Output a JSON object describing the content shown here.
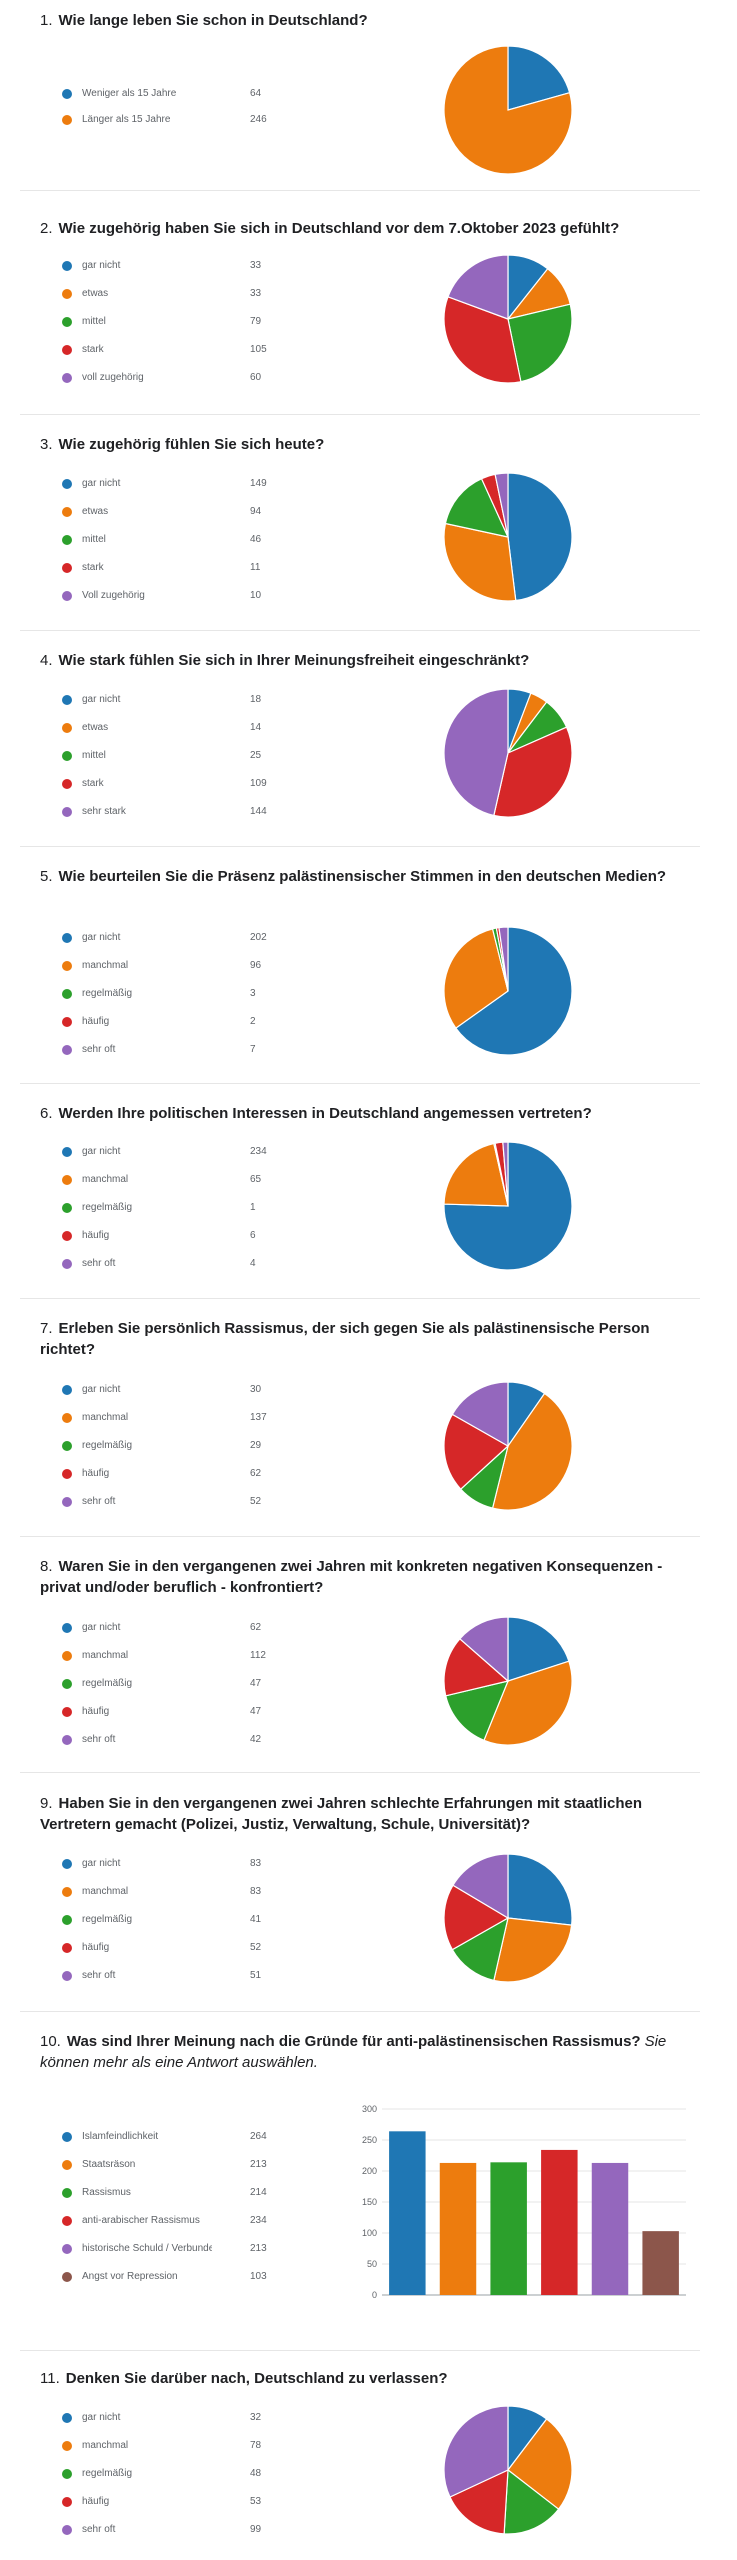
{
  "colors": {
    "blue": "#1f77b4",
    "orange": "#ed7c0e",
    "green": "#2ca02c",
    "red": "#d62728",
    "purple": "#9467bd",
    "brown": "#8c564b",
    "gridline": "#e6e6e6"
  },
  "chart_data": [
    {
      "type": "pie",
      "number": "1.",
      "title": "Wie lange leben Sie schon in Deutschland?",
      "categories": [
        "Weniger als 15 Jahre",
        "Länger als 15 Jahre"
      ],
      "values": [
        64,
        246
      ],
      "colors": [
        "#1f77b4",
        "#ed7c0e"
      ]
    },
    {
      "type": "pie",
      "number": "2.",
      "title": "Wie zugehörig haben Sie sich in Deutschland vor dem 7.Oktober 2023 gefühlt?",
      "categories": [
        "gar nicht",
        "etwas",
        "mittel",
        "stark",
        "voll zugehörig"
      ],
      "values": [
        33,
        33,
        79,
        105,
        60
      ],
      "colors": [
        "#1f77b4",
        "#ed7c0e",
        "#2ca02c",
        "#d62728",
        "#9467bd"
      ]
    },
    {
      "type": "pie",
      "number": "3.",
      "title": "Wie zugehörig fühlen Sie sich heute?",
      "categories": [
        "gar nicht",
        "etwas",
        "mittel",
        "stark",
        "Voll zugehörig"
      ],
      "values": [
        149,
        94,
        46,
        11,
        10
      ],
      "colors": [
        "#1f77b4",
        "#ed7c0e",
        "#2ca02c",
        "#d62728",
        "#9467bd"
      ]
    },
    {
      "type": "pie",
      "number": "4.",
      "title": "Wie stark fühlen Sie sich in Ihrer Meinungsfreiheit eingeschränkt?",
      "categories": [
        "gar nicht",
        "etwas",
        "mittel",
        "stark",
        "sehr stark"
      ],
      "values": [
        18,
        14,
        25,
        109,
        144
      ],
      "colors": [
        "#1f77b4",
        "#ed7c0e",
        "#2ca02c",
        "#d62728",
        "#9467bd"
      ]
    },
    {
      "type": "pie",
      "number": "5.",
      "title": "Wie beurteilen Sie die Präsenz palästinensischer Stimmen in den deutschen Medien?",
      "categories": [
        "gar nicht",
        "manchmal",
        "regelmäßig",
        "häufig",
        "sehr oft"
      ],
      "values": [
        202,
        96,
        3,
        2,
        7
      ],
      "colors": [
        "#1f77b4",
        "#ed7c0e",
        "#2ca02c",
        "#d62728",
        "#9467bd"
      ]
    },
    {
      "type": "pie",
      "number": "6.",
      "title": "Werden Ihre politischen Interessen in Deutschland angemessen vertreten?",
      "categories": [
        "gar nicht",
        "manchmal",
        "regelmäßig",
        "häufig",
        "sehr oft"
      ],
      "values": [
        234,
        65,
        1,
        6,
        4
      ],
      "colors": [
        "#1f77b4",
        "#ed7c0e",
        "#2ca02c",
        "#d62728",
        "#9467bd"
      ]
    },
    {
      "type": "pie",
      "number": "7.",
      "title": "Erleben Sie persönlich Rassismus, der sich gegen Sie als palästinensische Person richtet?",
      "categories": [
        "gar nicht",
        "manchmal",
        "regelmäßig",
        "häufig",
        "sehr oft"
      ],
      "values": [
        30,
        137,
        29,
        62,
        52
      ],
      "colors": [
        "#1f77b4",
        "#ed7c0e",
        "#2ca02c",
        "#d62728",
        "#9467bd"
      ]
    },
    {
      "type": "pie",
      "number": "8.",
      "title": "Waren Sie in den vergangenen zwei Jahren mit konkreten negativen Konsequenzen - privat und/oder beruflich - konfrontiert?",
      "categories": [
        "gar nicht",
        "manchmal",
        "regelmäßig",
        "häufig",
        "sehr oft"
      ],
      "values": [
        62,
        112,
        47,
        47,
        42
      ],
      "colors": [
        "#1f77b4",
        "#ed7c0e",
        "#2ca02c",
        "#d62728",
        "#9467bd"
      ]
    },
    {
      "type": "pie",
      "number": "9.",
      "title": "Haben Sie in den vergangenen zwei Jahren schlechte Erfahrungen mit staatlichen Vertretern gemacht (Polizei, Justiz, Verwaltung, Schule, Universität)?",
      "categories": [
        "gar nicht",
        "manchmal",
        "regelmäßig",
        "häufig",
        "sehr oft"
      ],
      "values": [
        83,
        83,
        41,
        52,
        51
      ],
      "colors": [
        "#1f77b4",
        "#ed7c0e",
        "#2ca02c",
        "#d62728",
        "#9467bd"
      ]
    },
    {
      "type": "bar",
      "number": "10.",
      "title": "Was sind Ihrer Meinung nach die Gründe für anti-palästinensischen Rassismus?",
      "hint": "Sie können mehr als eine Antwort auswählen.",
      "categories": [
        "Islamfeindlichkeit",
        "Staatsräson",
        "Rassismus",
        "anti-arabischer Rassismus",
        "historische Schuld / Verbunde…",
        "Angst vor Repression"
      ],
      "values": [
        264,
        213,
        214,
        234,
        213,
        103
      ],
      "colors": [
        "#1f77b4",
        "#ed7c0e",
        "#2ca02c",
        "#d62728",
        "#9467bd",
        "#8c564b"
      ],
      "ylim": [
        0,
        300
      ],
      "yticks": [
        "0",
        "50",
        "100",
        "150",
        "200",
        "250",
        "300"
      ],
      "grid": true
    },
    {
      "type": "pie",
      "number": "11.",
      "title": "Denken Sie darüber nach, Deutschland zu verlassen?",
      "categories": [
        "gar nicht",
        "manchmal",
        "regelmäßig",
        "häufig",
        "sehr oft"
      ],
      "values": [
        32,
        78,
        48,
        53,
        99
      ],
      "colors": [
        "#1f77b4",
        "#ed7c0e",
        "#2ca02c",
        "#d62728",
        "#9467bd"
      ]
    }
  ]
}
